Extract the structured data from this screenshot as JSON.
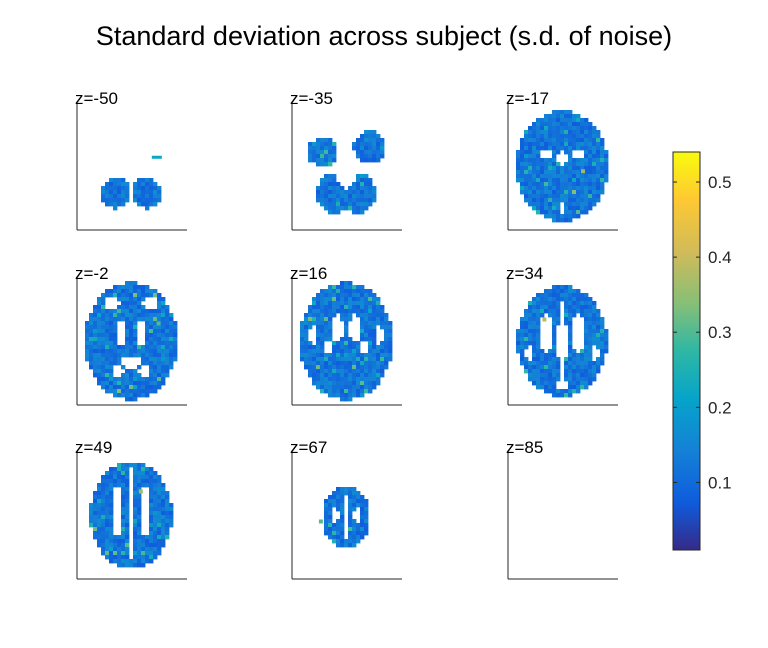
{
  "chart_data": {
    "type": "heatmap",
    "title": "Standard deviation across subject (s.d. of noise)",
    "xlabel": "",
    "ylabel": "",
    "colormap": "parula",
    "clim": [
      0.01,
      0.54
    ],
    "colorbar": {
      "ticks": [
        0.1,
        0.2,
        0.3,
        0.4,
        0.5
      ],
      "tick_labels": [
        "0.1",
        "0.2",
        "0.3",
        "0.4",
        "0.5"
      ],
      "placement": "right"
    },
    "typical_value": 0.12,
    "slices": [
      {
        "label": "z=-50",
        "z": -50,
        "shape": "cerebellum"
      },
      {
        "label": "z=-35",
        "z": -35,
        "shape": "temporal-cerebellum"
      },
      {
        "label": "z=-17",
        "z": -17,
        "shape": "full-ventral"
      },
      {
        "label": "z=-2",
        "z": -2,
        "shape": "full-deep-gray"
      },
      {
        "label": "z=16",
        "z": 16,
        "shape": "full-ventricles"
      },
      {
        "label": "z=34",
        "z": 34,
        "shape": "full-superior"
      },
      {
        "label": "z=49",
        "z": 49,
        "shape": "upper"
      },
      {
        "label": "z=67",
        "z": 67,
        "shape": "vertex"
      },
      {
        "label": "z=85",
        "z": 85,
        "shape": "empty"
      }
    ],
    "hotspots": [
      {
        "slice": "z=-17",
        "value": 0.35
      },
      {
        "slice": "z=-2",
        "value": 0.3
      },
      {
        "slice": "z=16",
        "value": 0.32
      },
      {
        "slice": "z=34",
        "value": 0.38
      },
      {
        "slice": "z=49",
        "value": 0.36
      },
      {
        "slice": "z=67",
        "value": 0.3
      }
    ],
    "grid": false,
    "panel_axes": "left-bottom"
  }
}
